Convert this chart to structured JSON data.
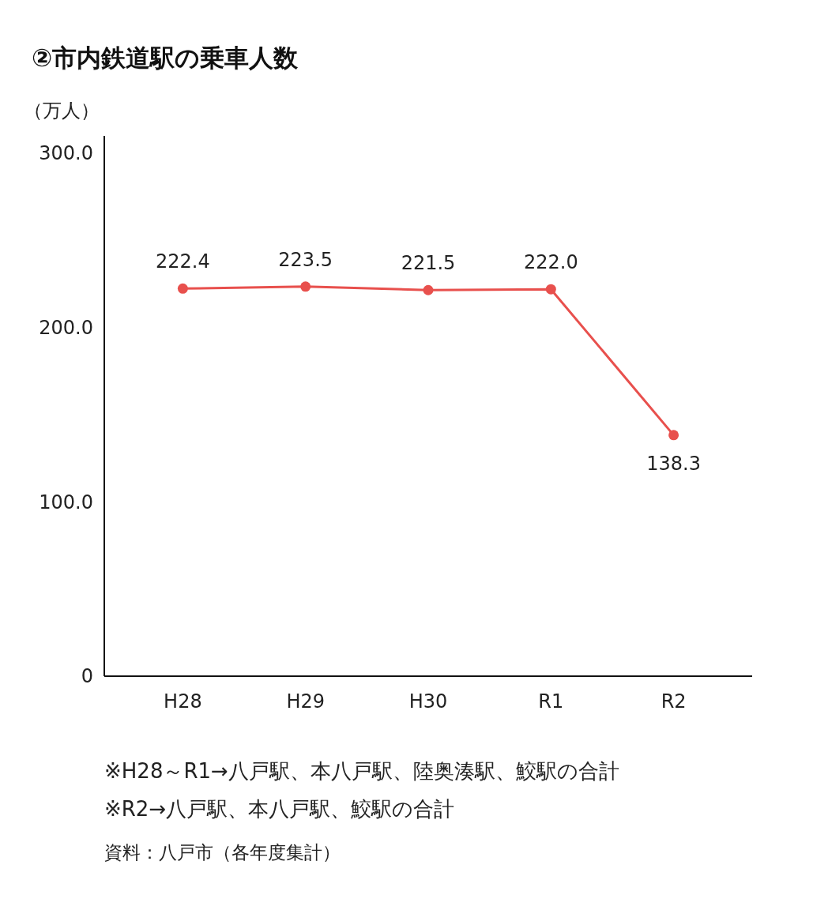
{
  "chart_data": {
    "type": "line",
    "title": "②市内鉄道駅の乗車人数",
    "ylabel": "（万人）",
    "categories": [
      "H28",
      "H29",
      "H30",
      "R1",
      "R2"
    ],
    "series": [
      {
        "color": "#e8504d",
        "values": [
          222.4,
          223.5,
          221.5,
          222.0,
          138.3
        ],
        "value_labels": [
          "222.4",
          "223.5",
          "221.5",
          "222.0",
          "138.3"
        ]
      }
    ],
    "ylim": [
      0,
      310
    ],
    "yticks": [
      0,
      {
        "value": 100,
        "label": "100.0"
      },
      {
        "value": 200,
        "label": "200.0"
      },
      {
        "value": 300,
        "label": "300.0"
      }
    ],
    "grid": false,
    "marker": "circle",
    "line_style": "solid",
    "annotations": [
      "※H28～R1→八戸駅、本八戸駅、陸奥湊駅、鮫駅の合計",
      "※R2→八戸駅、本八戸駅、鮫駅の合計",
      "資料：八戸市（各年度集計）"
    ]
  }
}
